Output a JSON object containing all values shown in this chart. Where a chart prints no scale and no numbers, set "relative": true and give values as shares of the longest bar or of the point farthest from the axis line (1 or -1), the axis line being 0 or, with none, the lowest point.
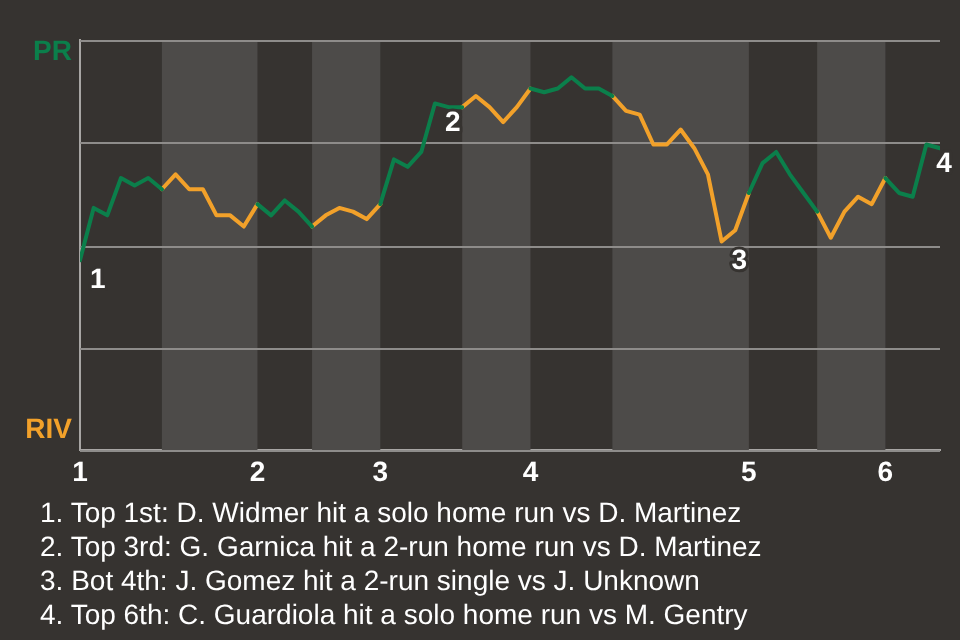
{
  "chart_data": {
    "type": "line",
    "categories": [
      "1",
      null,
      null,
      null,
      null,
      null,
      null,
      null,
      null,
      null,
      null,
      null,
      null,
      "2",
      null,
      null,
      null,
      null,
      null,
      null,
      null,
      null,
      "3",
      null,
      null,
      null,
      null,
      null,
      null,
      null,
      null,
      null,
      null,
      "4",
      null,
      null,
      null,
      null,
      null,
      null,
      null,
      null,
      null,
      null,
      null,
      null,
      null,
      null,
      null,
      "5",
      null,
      null,
      null,
      null,
      null,
      null,
      null,
      null,
      null,
      "6",
      null,
      null,
      null,
      null
    ],
    "relative": true,
    "series": [
      {
        "color": "#0b7f4b",
        "values": [
          0.51,
          0.65,
          0.63,
          0.73,
          0.71,
          0.73,
          0.7,
          null,
          null,
          null,
          null,
          null,
          null,
          0.66,
          0.63,
          0.67,
          0.64,
          0.6,
          null,
          null,
          null,
          null,
          0.66,
          0.78,
          0.76,
          0.8,
          0.93,
          0.92,
          0.92,
          null,
          null,
          null,
          null,
          0.97,
          0.96,
          0.97,
          1,
          0.97,
          0.97,
          0.95,
          null,
          null,
          null,
          null,
          null,
          null,
          null,
          null,
          null,
          0.69,
          0.77,
          0.8,
          0.74,
          0.69,
          0.64,
          null,
          null,
          null,
          null,
          0.73,
          0.69,
          0.68,
          0.82,
          0.81
        ]
      },
      {
        "color": "#f2a12a",
        "values": [
          null,
          null,
          null,
          null,
          null,
          null,
          0.7,
          0.74,
          0.7,
          0.7,
          0.63,
          0.63,
          0.6,
          0.66,
          null,
          null,
          null,
          0.6,
          0.63,
          0.65,
          0.64,
          0.62,
          0.66,
          null,
          null,
          null,
          null,
          null,
          0.92,
          0.95,
          0.92,
          0.88,
          0.92,
          0.97,
          null,
          null,
          null,
          null,
          null,
          0.95,
          0.91,
          0.9,
          0.82,
          0.82,
          0.86,
          0.81,
          0.74,
          0.56,
          0.59,
          0.69,
          null,
          null,
          null,
          null,
          0.64,
          0.57,
          0.64,
          0.68,
          0.66,
          0.73,
          null,
          null,
          null,
          null
        ]
      }
    ],
    "grid": "y",
    "marker": "none",
    "annotations": [
      {
        "text": "1",
        "x": "1",
        "y": 0.51
      },
      {
        "text": "2",
        "y": 0.93
      },
      {
        "text": "3",
        "y": 0.56
      },
      {
        "text": "4",
        "y": 0.82
      },
      "PR",
      "RIV",
      "1. Top 1st: D. Widmer hit a solo home run vs D. Martinez",
      "2. Top 3rd: G. Garnica hit a 2-run home run vs D. Martinez",
      "3. Bot 4th: J. Gomez hit a 2-run single vs J. Unknown",
      "4. Top 6th: C. Guardiola hit a solo home run vs M. Gentry"
    ]
  }
}
